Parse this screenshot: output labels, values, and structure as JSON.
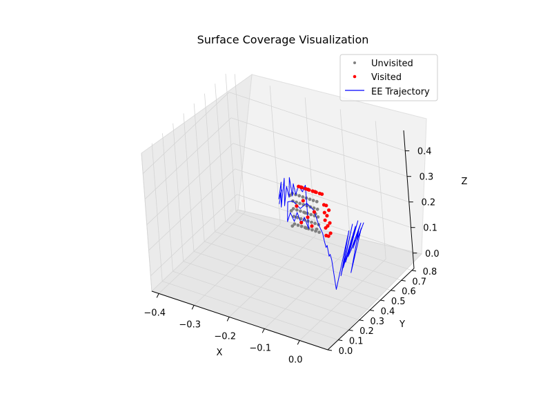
{
  "chart_data": {
    "type": "scatter3d",
    "title": "Surface Coverage Visualization",
    "xlabel": "X",
    "ylabel": "Y",
    "zlabel": "Z",
    "xlim": [
      -0.42,
      0.08
    ],
    "ylim": [
      0.0,
      0.82
    ],
    "zlim": [
      -0.06,
      0.48
    ],
    "x_ticks": [
      {
        "v": -0.4,
        "label": "−0.4"
      },
      {
        "v": -0.3,
        "label": "−0.3"
      },
      {
        "v": -0.2,
        "label": "−0.2"
      },
      {
        "v": -0.1,
        "label": "−0.1"
      },
      {
        "v": 0.0,
        "label": "0.0"
      }
    ],
    "y_ticks": [
      {
        "v": 0.0,
        "label": "0.0"
      },
      {
        "v": 0.1,
        "label": "0.1"
      },
      {
        "v": 0.2,
        "label": "0.2"
      },
      {
        "v": 0.3,
        "label": "0.3"
      },
      {
        "v": 0.4,
        "label": "0.4"
      },
      {
        "v": 0.5,
        "label": "0.5"
      },
      {
        "v": 0.6,
        "label": "0.6"
      },
      {
        "v": 0.7,
        "label": "0.7"
      },
      {
        "v": 0.8,
        "label": "0.8"
      }
    ],
    "z_ticks": [
      {
        "v": 0.0,
        "label": "0.0"
      },
      {
        "v": 0.1,
        "label": "0.1"
      },
      {
        "v": 0.2,
        "label": "0.2"
      },
      {
        "v": 0.3,
        "label": "0.3"
      },
      {
        "v": 0.4,
        "label": "0.4"
      }
    ],
    "grid": true,
    "legend_position": "top-right",
    "legend": [
      {
        "label": "Unvisited",
        "marker": "dot",
        "color": "#808080"
      },
      {
        "label": "Visited",
        "marker": "dot",
        "color": "#ff0000"
      },
      {
        "label": "EE Trajectory",
        "marker": "line",
        "color": "#0000ff"
      }
    ],
    "colors": {
      "unvisited": "#808080",
      "visited": "#ff0000",
      "trajectory": "#0000ff",
      "pane": "#f2f2f2",
      "grid": "#d4d4d4"
    },
    "series": [
      {
        "name": "Unvisited",
        "kind": "points",
        "points": [
          [
            -0.16,
            0.52,
            0.12
          ],
          [
            -0.16,
            0.52,
            0.15
          ],
          [
            -0.16,
            0.52,
            0.18
          ],
          [
            -0.16,
            0.52,
            0.21
          ],
          [
            -0.16,
            0.52,
            0.24
          ],
          [
            -0.15,
            0.52,
            0.12
          ],
          [
            -0.15,
            0.52,
            0.15
          ],
          [
            -0.15,
            0.52,
            0.18
          ],
          [
            -0.15,
            0.52,
            0.21
          ],
          [
            -0.15,
            0.52,
            0.24
          ],
          [
            -0.14,
            0.52,
            0.12
          ],
          [
            -0.14,
            0.52,
            0.15
          ],
          [
            -0.14,
            0.52,
            0.18
          ],
          [
            -0.14,
            0.52,
            0.21
          ],
          [
            -0.14,
            0.52,
            0.24
          ],
          [
            -0.13,
            0.52,
            0.12
          ],
          [
            -0.13,
            0.52,
            0.15
          ],
          [
            -0.13,
            0.52,
            0.18
          ],
          [
            -0.13,
            0.52,
            0.21
          ],
          [
            -0.13,
            0.52,
            0.24
          ],
          [
            -0.12,
            0.52,
            0.12
          ],
          [
            -0.12,
            0.52,
            0.15
          ],
          [
            -0.12,
            0.52,
            0.18
          ],
          [
            -0.12,
            0.52,
            0.21
          ],
          [
            -0.12,
            0.52,
            0.24
          ],
          [
            -0.11,
            0.52,
            0.12
          ],
          [
            -0.11,
            0.52,
            0.15
          ],
          [
            -0.11,
            0.52,
            0.18
          ],
          [
            -0.11,
            0.52,
            0.21
          ],
          [
            -0.11,
            0.52,
            0.24
          ],
          [
            -0.1,
            0.52,
            0.12
          ],
          [
            -0.1,
            0.52,
            0.15
          ],
          [
            -0.1,
            0.52,
            0.18
          ],
          [
            -0.1,
            0.52,
            0.21
          ],
          [
            -0.1,
            0.52,
            0.24
          ],
          [
            -0.09,
            0.52,
            0.12
          ],
          [
            -0.09,
            0.52,
            0.15
          ],
          [
            -0.09,
            0.52,
            0.18
          ],
          [
            -0.09,
            0.52,
            0.21
          ],
          [
            -0.09,
            0.52,
            0.24
          ],
          [
            -0.16,
            0.5,
            0.12
          ],
          [
            -0.16,
            0.5,
            0.18
          ],
          [
            -0.16,
            0.5,
            0.24
          ],
          [
            -0.12,
            0.5,
            0.13
          ],
          [
            -0.12,
            0.5,
            0.19
          ],
          [
            -0.09,
            0.5,
            0.14
          ],
          [
            -0.09,
            0.5,
            0.2
          ]
        ]
      },
      {
        "name": "Visited",
        "kind": "points",
        "points": [
          [
            -0.15,
            0.55,
            0.26
          ],
          [
            -0.14,
            0.55,
            0.26
          ],
          [
            -0.13,
            0.55,
            0.26
          ],
          [
            -0.12,
            0.55,
            0.26
          ],
          [
            -0.11,
            0.55,
            0.26
          ],
          [
            -0.1,
            0.55,
            0.26
          ],
          [
            -0.09,
            0.55,
            0.26
          ],
          [
            -0.15,
            0.57,
            0.25
          ],
          [
            -0.13,
            0.57,
            0.25
          ],
          [
            -0.11,
            0.57,
            0.25
          ],
          [
            -0.09,
            0.57,
            0.25
          ],
          [
            -0.08,
            0.55,
            0.22
          ],
          [
            -0.08,
            0.55,
            0.19
          ],
          [
            -0.08,
            0.55,
            0.16
          ],
          [
            -0.08,
            0.55,
            0.13
          ],
          [
            -0.08,
            0.55,
            0.1
          ],
          [
            -0.08,
            0.57,
            0.21
          ],
          [
            -0.08,
            0.57,
            0.17
          ],
          [
            -0.08,
            0.57,
            0.13
          ],
          [
            -0.08,
            0.57,
            0.09
          ],
          [
            -0.07,
            0.56,
            0.2
          ],
          [
            -0.07,
            0.56,
            0.15
          ],
          [
            -0.07,
            0.56,
            0.11
          ],
          [
            -0.14,
            0.52,
            0.135
          ],
          [
            -0.12,
            0.52,
            0.165
          ],
          [
            -0.1,
            0.52,
            0.195
          ],
          [
            -0.13,
            0.52,
            0.225
          ],
          [
            -0.11,
            0.52,
            0.135
          ],
          [
            -0.15,
            0.52,
            0.195
          ]
        ]
      },
      {
        "name": "EE Trajectory",
        "kind": "path",
        "points": [
          [
            -0.2,
            0.52,
            0.18
          ],
          [
            -0.19,
            0.52,
            0.24
          ],
          [
            -0.2,
            0.52,
            0.2
          ],
          [
            -0.19,
            0.52,
            0.27
          ],
          [
            -0.195,
            0.52,
            0.17
          ],
          [
            -0.185,
            0.52,
            0.25
          ],
          [
            -0.19,
            0.52,
            0.21
          ],
          [
            -0.18,
            0.52,
            0.29
          ],
          [
            -0.185,
            0.52,
            0.18
          ],
          [
            -0.175,
            0.52,
            0.26
          ],
          [
            -0.17,
            0.52,
            0.22
          ],
          [
            -0.165,
            0.52,
            0.3
          ],
          [
            -0.16,
            0.52,
            0.23
          ],
          [
            -0.155,
            0.52,
            0.28
          ],
          [
            -0.15,
            0.52,
            0.24
          ],
          [
            -0.14,
            0.52,
            0.28
          ],
          [
            -0.13,
            0.52,
            0.26
          ],
          [
            -0.12,
            0.52,
            0.29
          ],
          [
            -0.12,
            0.52,
            0.12
          ],
          [
            -0.13,
            0.52,
            0.16
          ],
          [
            -0.14,
            0.52,
            0.13
          ],
          [
            -0.15,
            0.52,
            0.17
          ],
          [
            -0.16,
            0.52,
            0.13
          ],
          [
            -0.17,
            0.52,
            0.16
          ],
          [
            -0.18,
            0.52,
            0.12
          ],
          [
            -0.175,
            0.52,
            0.2
          ],
          [
            -0.16,
            0.52,
            0.21
          ],
          [
            -0.14,
            0.52,
            0.19
          ],
          [
            -0.12,
            0.52,
            0.22
          ],
          [
            -0.1,
            0.52,
            0.2
          ],
          [
            -0.09,
            0.52,
            0.15
          ],
          [
            -0.08,
            0.52,
            0.12
          ],
          [
            -0.07,
            0.5,
            0.1
          ],
          [
            -0.06,
            0.48,
            0.09
          ],
          [
            -0.05,
            0.46,
            0.11
          ],
          [
            -0.04,
            0.44,
            0.08
          ],
          [
            -0.03,
            0.42,
            0.1
          ],
          [
            -0.02,
            0.4,
            0.09
          ],
          [
            0.0,
            0.36,
            0.0
          ],
          [
            0.03,
            0.42,
            0.22
          ],
          [
            0.01,
            0.38,
            0.05
          ],
          [
            0.035,
            0.44,
            0.24
          ],
          [
            0.015,
            0.39,
            0.08
          ],
          [
            0.04,
            0.45,
            0.23
          ],
          [
            0.02,
            0.4,
            0.1
          ],
          [
            0.045,
            0.46,
            0.25
          ],
          [
            0.025,
            0.41,
            0.12
          ],
          [
            0.04,
            0.44,
            0.18
          ],
          [
            0.03,
            0.42,
            0.14
          ],
          [
            0.05,
            0.47,
            0.24
          ],
          [
            0.035,
            0.43,
            0.15
          ],
          [
            0.045,
            0.46,
            0.21
          ],
          [
            0.03,
            0.41,
            0.06
          ],
          [
            0.05,
            0.47,
            0.22
          ],
          [
            0.04,
            0.45,
            0.17
          ],
          [
            0.055,
            0.48,
            0.24
          ]
        ]
      }
    ]
  }
}
